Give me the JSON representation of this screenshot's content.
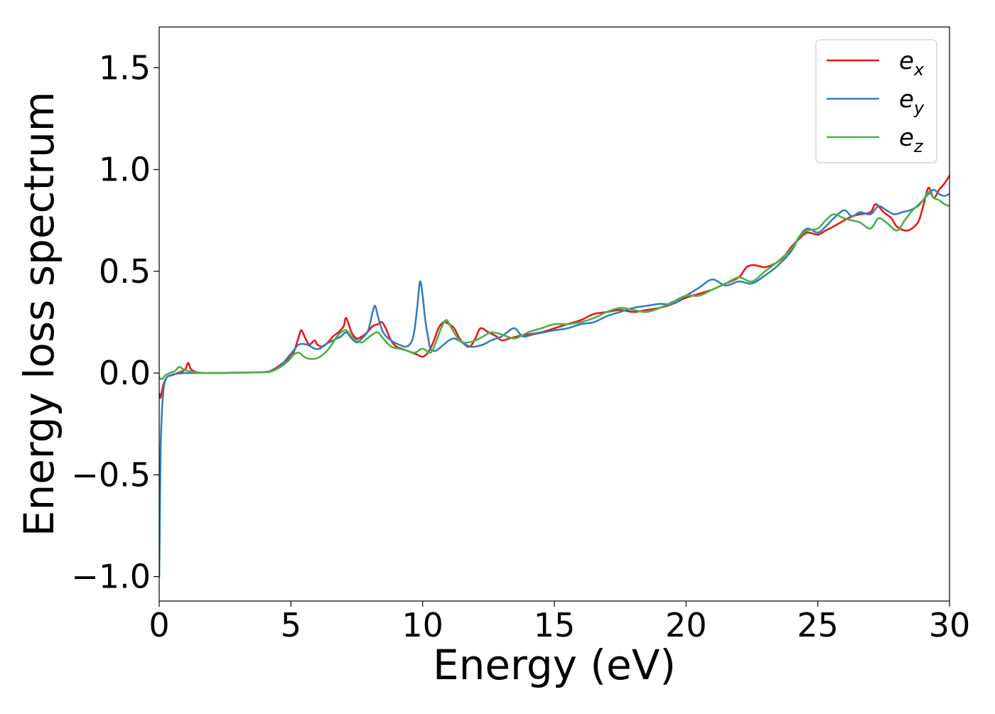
{
  "chart_data": {
    "type": "line",
    "title": "",
    "xlabel": "Energy (eV)",
    "ylabel": "Energy loss spectrum",
    "xlim": [
      0,
      30
    ],
    "ylim": [
      -1.12,
      1.7
    ],
    "xticks": [
      0,
      5,
      10,
      15,
      20,
      25,
      30
    ],
    "xtick_labels": [
      "0",
      "5",
      "10",
      "15",
      "20",
      "25",
      "30"
    ],
    "yticks": [
      -1.0,
      -0.5,
      0.0,
      0.5,
      1.0,
      1.5
    ],
    "ytick_labels": [
      "−1.0",
      "−0.5",
      "0.0",
      "0.5",
      "1.0",
      "1.5"
    ],
    "grid": false,
    "legend_position": "top-right",
    "series": [
      {
        "name": "e_x",
        "legend_base": "e",
        "legend_sub": "x",
        "color": "#e41a1c",
        "x": [
          0,
          0.05,
          0.15,
          0.3,
          0.5,
          0.7,
          0.9,
          1.0,
          1.1,
          1.2,
          1.4,
          1.7,
          2.0,
          3.0,
          4.0,
          4.3,
          4.6,
          4.9,
          5.1,
          5.3,
          5.4,
          5.55,
          5.7,
          5.9,
          6.0,
          6.2,
          6.4,
          6.6,
          6.8,
          7.0,
          7.1,
          7.3,
          7.5,
          7.7,
          7.9,
          8.1,
          8.3,
          8.45,
          8.6,
          8.8,
          9.0,
          9.2,
          9.4,
          9.6,
          9.8,
          10.0,
          10.2,
          10.4,
          10.6,
          10.8,
          11.0,
          11.2,
          11.4,
          11.6,
          11.8,
          12.0,
          12.2,
          12.5,
          12.8,
          13.0,
          13.3,
          13.6,
          14.0,
          14.5,
          15.0,
          15.5,
          16.0,
          16.5,
          17.0,
          17.5,
          18.0,
          18.5,
          19.0,
          19.5,
          20.0,
          20.5,
          21.0,
          21.5,
          22.0,
          22.3,
          22.6,
          23.0,
          23.4,
          23.7,
          24.0,
          24.3,
          24.6,
          25.0,
          25.3,
          25.6,
          26.0,
          26.3,
          26.6,
          27.0,
          27.2,
          27.5,
          27.8,
          28.0,
          28.4,
          28.8,
          29.0,
          29.2,
          29.4,
          29.6,
          29.8,
          30.0
        ],
        "y": [
          -0.1,
          -0.12,
          -0.06,
          -0.02,
          -0.01,
          0.0,
          0.01,
          0.02,
          0.05,
          0.02,
          0.005,
          0.0,
          0.0,
          0.002,
          0.005,
          0.015,
          0.04,
          0.07,
          0.1,
          0.18,
          0.21,
          0.17,
          0.14,
          0.16,
          0.14,
          0.13,
          0.15,
          0.18,
          0.2,
          0.23,
          0.27,
          0.2,
          0.17,
          0.18,
          0.2,
          0.23,
          0.24,
          0.25,
          0.22,
          0.16,
          0.13,
          0.12,
          0.11,
          0.1,
          0.09,
          0.08,
          0.1,
          0.15,
          0.22,
          0.25,
          0.24,
          0.22,
          0.17,
          0.14,
          0.13,
          0.17,
          0.22,
          0.2,
          0.18,
          0.16,
          0.17,
          0.18,
          0.19,
          0.2,
          0.22,
          0.24,
          0.26,
          0.29,
          0.3,
          0.31,
          0.3,
          0.31,
          0.32,
          0.34,
          0.37,
          0.39,
          0.41,
          0.44,
          0.47,
          0.52,
          0.53,
          0.52,
          0.54,
          0.57,
          0.62,
          0.66,
          0.69,
          0.68,
          0.7,
          0.72,
          0.75,
          0.77,
          0.78,
          0.79,
          0.83,
          0.79,
          0.76,
          0.72,
          0.7,
          0.74,
          0.82,
          0.91,
          0.86,
          0.9,
          0.93,
          0.97
        ]
      },
      {
        "name": "e_y",
        "legend_base": "e",
        "legend_sub": "y",
        "color": "#377eb8",
        "x": [
          0.0,
          0.02,
          0.05,
          0.1,
          0.15,
          0.2,
          0.3,
          0.45,
          0.6,
          1.0,
          1.5,
          2.0,
          3.0,
          4.0,
          4.3,
          4.6,
          4.9,
          5.1,
          5.3,
          5.6,
          5.9,
          6.1,
          6.3,
          6.6,
          6.9,
          7.1,
          7.3,
          7.5,
          7.7,
          7.9,
          8.0,
          8.1,
          8.2,
          8.3,
          8.5,
          8.8,
          9.1,
          9.4,
          9.6,
          9.7,
          9.8,
          9.9,
          10.0,
          10.1,
          10.2,
          10.3,
          10.5,
          10.8,
          11.0,
          11.2,
          11.5,
          11.8,
          12.0,
          12.3,
          12.6,
          13.0,
          13.2,
          13.5,
          13.8,
          14.2,
          14.6,
          15.0,
          15.5,
          16.0,
          16.5,
          17.0,
          17.5,
          18.0,
          18.5,
          19.0,
          19.5,
          20.0,
          20.5,
          21.0,
          21.5,
          22.0,
          22.5,
          23.0,
          23.5,
          24.0,
          24.3,
          24.6,
          25.0,
          25.3,
          25.6,
          26.0,
          26.3,
          26.6,
          27.0,
          27.3,
          27.6,
          27.9,
          28.2,
          28.5,
          28.8,
          29.0,
          29.2,
          29.4,
          29.6,
          29.8,
          30.0
        ],
        "y": [
          -1.0,
          -0.8,
          -0.4,
          -0.2,
          -0.1,
          -0.05,
          -0.02,
          -0.01,
          -0.005,
          0.0,
          0.0,
          0.0,
          0.002,
          0.005,
          0.012,
          0.035,
          0.08,
          0.11,
          0.14,
          0.14,
          0.12,
          0.12,
          0.14,
          0.16,
          0.18,
          0.2,
          0.17,
          0.15,
          0.17,
          0.2,
          0.24,
          0.3,
          0.33,
          0.28,
          0.2,
          0.16,
          0.14,
          0.13,
          0.16,
          0.22,
          0.33,
          0.45,
          0.38,
          0.26,
          0.18,
          0.12,
          0.11,
          0.14,
          0.16,
          0.17,
          0.15,
          0.13,
          0.13,
          0.14,
          0.16,
          0.18,
          0.2,
          0.22,
          0.18,
          0.19,
          0.2,
          0.21,
          0.22,
          0.24,
          0.25,
          0.28,
          0.3,
          0.32,
          0.33,
          0.34,
          0.34,
          0.38,
          0.42,
          0.46,
          0.43,
          0.45,
          0.44,
          0.48,
          0.53,
          0.6,
          0.67,
          0.71,
          0.69,
          0.72,
          0.76,
          0.8,
          0.77,
          0.79,
          0.78,
          0.82,
          0.8,
          0.78,
          0.79,
          0.8,
          0.82,
          0.85,
          0.88,
          0.9,
          0.88,
          0.87,
          0.88
        ]
      },
      {
        "name": "e_z",
        "legend_base": "e",
        "legend_sub": "z",
        "color": "#4daf4a",
        "x": [
          0,
          0.1,
          0.25,
          0.4,
          0.6,
          0.75,
          0.9,
          1.1,
          1.3,
          1.6,
          2.0,
          3.0,
          4.0,
          4.3,
          4.6,
          4.9,
          5.1,
          5.3,
          5.5,
          5.7,
          5.9,
          6.1,
          6.3,
          6.5,
          6.7,
          6.9,
          7.1,
          7.3,
          7.5,
          7.7,
          7.9,
          8.1,
          8.3,
          8.5,
          8.8,
          9.1,
          9.4,
          9.7,
          10.0,
          10.3,
          10.5,
          10.7,
          10.9,
          11.1,
          11.4,
          11.7,
          12.0,
          12.3,
          12.6,
          13.0,
          13.5,
          14.0,
          14.5,
          15.0,
          15.5,
          16.0,
          16.5,
          17.0,
          17.5,
          18.0,
          18.5,
          19.0,
          19.5,
          20.0,
          20.5,
          21.0,
          21.5,
          22.0,
          22.5,
          23.0,
          23.5,
          24.0,
          24.3,
          24.6,
          25.0,
          25.3,
          25.6,
          26.0,
          26.3,
          26.6,
          27.0,
          27.3,
          27.6,
          28.0,
          28.3,
          28.6,
          29.0,
          29.2,
          29.4,
          29.6,
          29.8,
          30.0
        ],
        "y": [
          -0.02,
          -0.03,
          -0.01,
          0.0,
          0.01,
          0.03,
          0.02,
          0.01,
          0.005,
          0.0,
          0.0,
          0.002,
          0.004,
          0.01,
          0.03,
          0.06,
          0.09,
          0.1,
          0.08,
          0.07,
          0.07,
          0.08,
          0.1,
          0.13,
          0.17,
          0.2,
          0.21,
          0.18,
          0.16,
          0.15,
          0.17,
          0.19,
          0.2,
          0.17,
          0.13,
          0.12,
          0.11,
          0.1,
          0.12,
          0.1,
          0.15,
          0.22,
          0.26,
          0.22,
          0.16,
          0.15,
          0.16,
          0.18,
          0.2,
          0.19,
          0.17,
          0.2,
          0.22,
          0.24,
          0.24,
          0.25,
          0.27,
          0.3,
          0.32,
          0.31,
          0.3,
          0.32,
          0.35,
          0.38,
          0.38,
          0.41,
          0.44,
          0.47,
          0.45,
          0.5,
          0.55,
          0.61,
          0.67,
          0.7,
          0.71,
          0.75,
          0.78,
          0.76,
          0.75,
          0.74,
          0.71,
          0.76,
          0.74,
          0.7,
          0.75,
          0.8,
          0.85,
          0.89,
          0.86,
          0.85,
          0.83,
          0.82
        ]
      }
    ]
  }
}
